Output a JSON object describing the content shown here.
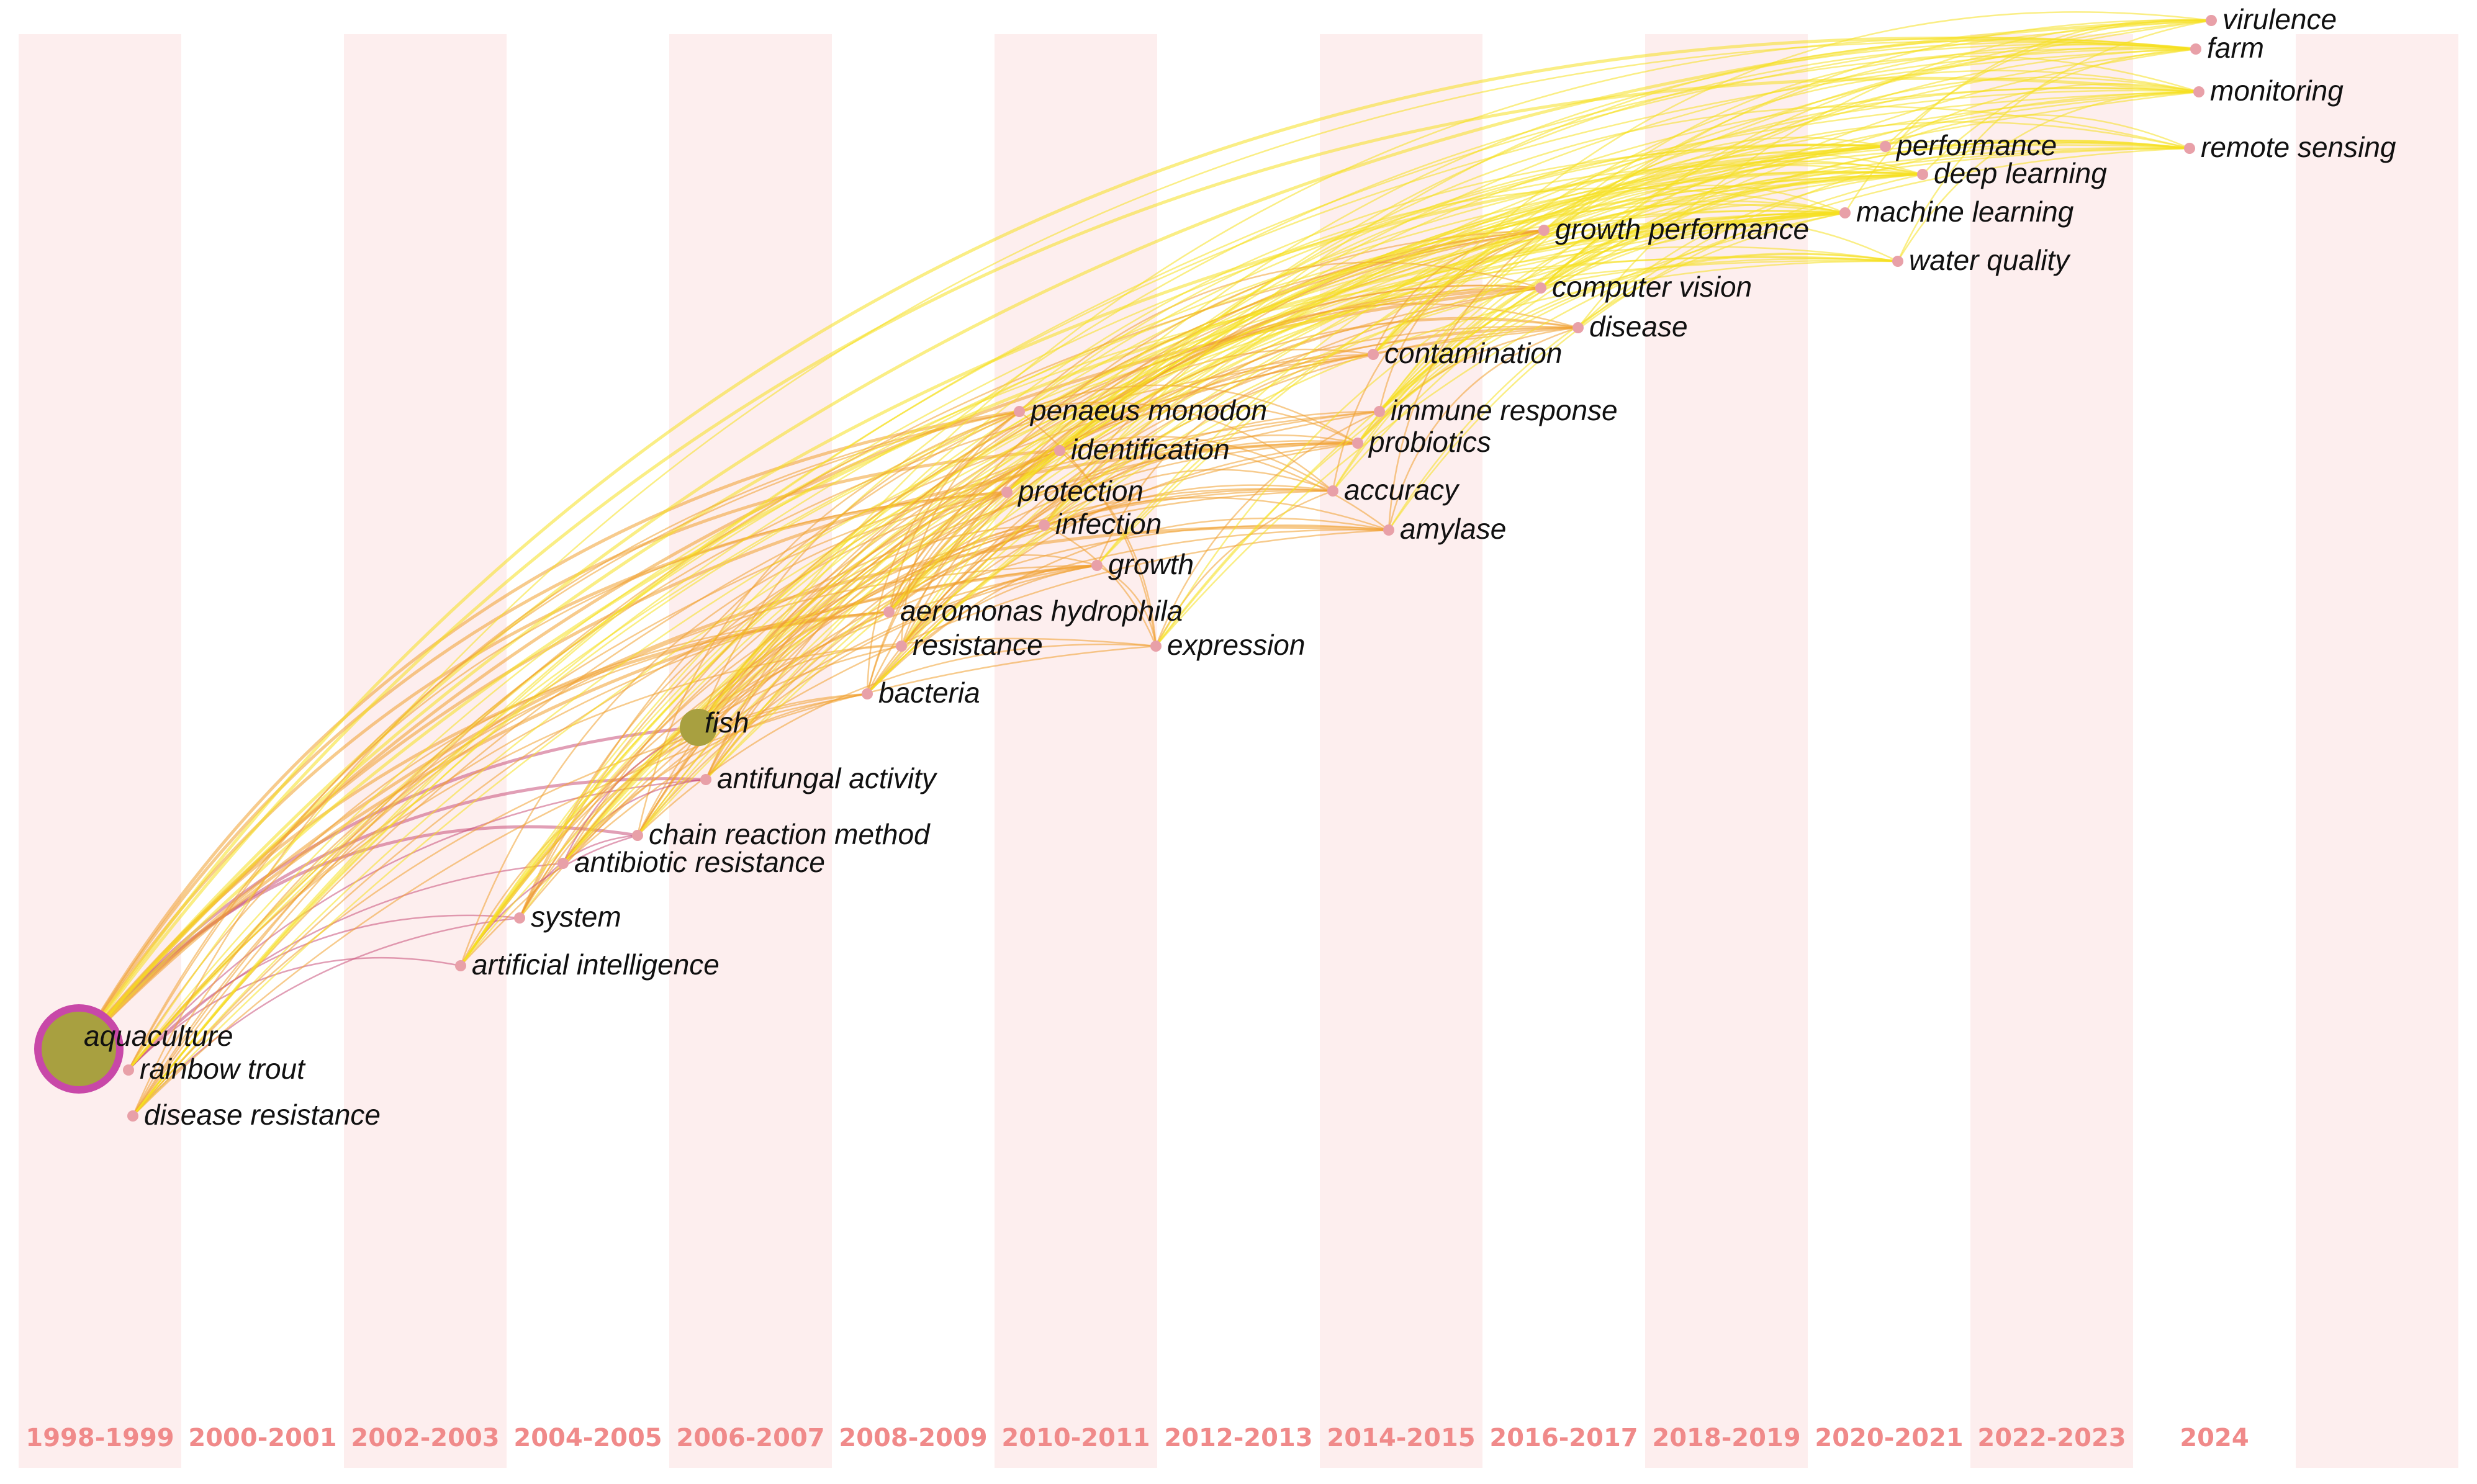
{
  "colors": {
    "band": "#fdeeee",
    "year_label": "#f08a8a",
    "keyword_label": "#111111",
    "early_link": "#c8507a",
    "mid_link": "#f0a030",
    "late_link": "#f5e020"
  },
  "time_slices": [
    "1998-1999",
    "2000-2001",
    "2002-2003",
    "2004-2005",
    "2006-2007",
    "2008-2009",
    "2010-2011",
    "2012-2013",
    "2014-2015",
    "2016-2017",
    "2018-2019",
    "2020-2021",
    "2022-2023",
    "2024"
  ],
  "keywords": [
    {
      "label": "aquaculture",
      "slice": 0,
      "size": 3
    },
    {
      "label": "rainbow trout",
      "slice": 0,
      "size": 1
    },
    {
      "label": "disease resistance",
      "slice": 0,
      "size": 1
    },
    {
      "label": "system",
      "slice": 2,
      "size": 1
    },
    {
      "label": "artificial intelligence",
      "slice": 2,
      "size": 1
    },
    {
      "label": "fish",
      "slice": 4,
      "size": 2
    },
    {
      "label": "antifungal activity",
      "slice": 4,
      "size": 1
    },
    {
      "label": "chain reaction method",
      "slice": 4,
      "size": 1
    },
    {
      "label": "antibiotic resistance",
      "slice": 3,
      "size": 1
    },
    {
      "label": "aeromonas hydrophila",
      "slice": 5,
      "size": 1
    },
    {
      "label": "resistance",
      "slice": 5,
      "size": 1
    },
    {
      "label": "bacteria",
      "slice": 5,
      "size": 1
    },
    {
      "label": "penaeus monodon",
      "slice": 6,
      "size": 1
    },
    {
      "label": "identification",
      "slice": 6,
      "size": 1
    },
    {
      "label": "protection",
      "slice": 6,
      "size": 1
    },
    {
      "label": "infection",
      "slice": 6,
      "size": 1
    },
    {
      "label": "growth",
      "slice": 6,
      "size": 1
    },
    {
      "label": "expression",
      "slice": 7,
      "size": 1
    },
    {
      "label": "immune response",
      "slice": 8,
      "size": 1
    },
    {
      "label": "probiotics",
      "slice": 8,
      "size": 1
    },
    {
      "label": "accuracy",
      "slice": 8,
      "size": 1
    },
    {
      "label": "amylase",
      "slice": 8,
      "size": 1
    },
    {
      "label": "contamination",
      "slice": 8,
      "size": 1
    },
    {
      "label": "growth performance",
      "slice": 9,
      "size": 1
    },
    {
      "label": "computer vision",
      "slice": 9,
      "size": 1
    },
    {
      "label": "disease",
      "slice": 9,
      "size": 1
    },
    {
      "label": "performance",
      "slice": 11,
      "size": 1
    },
    {
      "label": "deep learning",
      "slice": 11,
      "size": 1
    },
    {
      "label": "machine learning",
      "slice": 11,
      "size": 1
    },
    {
      "label": "water quality",
      "slice": 11,
      "size": 1
    },
    {
      "label": "virulence",
      "slice": 13,
      "size": 1
    },
    {
      "label": "farm",
      "slice": 13,
      "size": 1
    },
    {
      "label": "monitoring",
      "slice": 13,
      "size": 1
    },
    {
      "label": "remote sensing",
      "slice": 13,
      "size": 1
    }
  ]
}
